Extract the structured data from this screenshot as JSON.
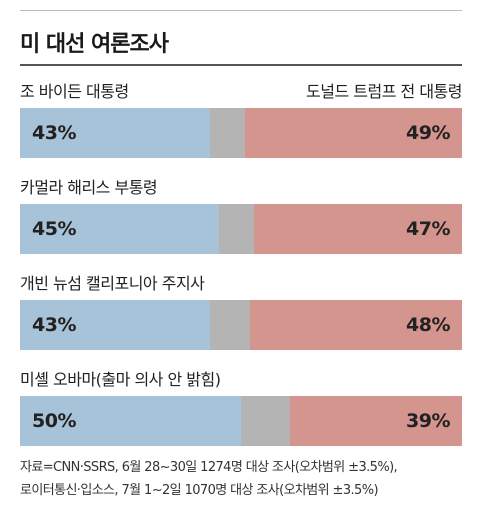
{
  "title": "미 대선 여론조사",
  "colors": {
    "a": "#a7c3d9",
    "undecided": "#b4b4b4",
    "b": "#d4958f"
  },
  "chart_data": {
    "type": "bar",
    "orientation": "horizontal-stacked",
    "title": "미 대선 여론조사",
    "right_candidate": "도널드 트럼프 전 대통령",
    "categories": [
      "조 바이든 대통령",
      "카멀라 해리스 부통령",
      "개빈 뉴섬 캘리포니아 주지사",
      "미셸 오바마(출마 의사 안 밝힘)"
    ],
    "series": [
      {
        "values": [
          43,
          45,
          43,
          50
        ],
        "labels": [
          "43%",
          "45%",
          "43%",
          "50%"
        ]
      },
      {
        "values": [
          8,
          8,
          9,
          11
        ]
      },
      {
        "values": [
          49,
          47,
          48,
          39
        ],
        "labels": [
          "49%",
          "47%",
          "48%",
          "39%"
        ]
      }
    ],
    "xlim": [
      0,
      100
    ]
  },
  "source": {
    "line1": "자료=CNN·SSRS, 6월 28~30일 1274명 대상 조사(오차범위 ±3.5%),",
    "line2": "로이터통신·입소스, 7월 1~2일 1070명 대상 조사(오차범위 ±3.5%)"
  }
}
